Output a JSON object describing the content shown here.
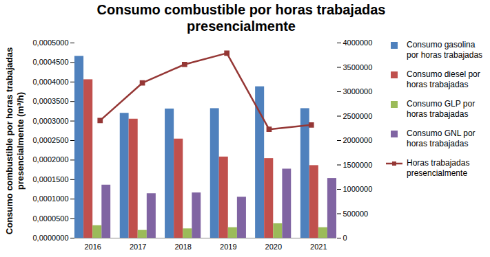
{
  "chart_data": {
    "type": "bar",
    "title": "Consumo combustible por horas trabajadas presencialmente",
    "ylabel": "Consumo combustible por horas trabajadas presencialmente (m³/h)",
    "categories": [
      "2016",
      "2017",
      "2018",
      "2019",
      "2020",
      "2021"
    ],
    "series": [
      {
        "name": "Consumo gasolina por horas trabajadas",
        "color": "#4f81bd",
        "values": [
          0.000466,
          0.00032,
          0.000331,
          0.000332,
          0.000388,
          0.000332
        ]
      },
      {
        "name": "Consumo diesel por horas trabajadas",
        "color": "#c0504d",
        "values": [
          0.000406,
          0.000305,
          0.000254,
          0.000208,
          0.000204,
          0.000186
        ]
      },
      {
        "name": "Consumo GLP por horas trabajadas",
        "color": "#9bbb59",
        "values": [
          3.2e-05,
          2e-05,
          2.4e-05,
          2.7e-05,
          3.7e-05,
          2.7e-05
        ]
      },
      {
        "name": "Consumo GNL por horas trabajadas",
        "color": "#8064a2",
        "values": [
          0.000136,
          0.000114,
          0.000116,
          0.000105,
          0.000177,
          0.000153
        ]
      },
      {
        "name": "Horas trabajadas presencialmente",
        "type": "line",
        "axis": "y2",
        "color": "#953735",
        "marker": "square",
        "values": [
          2410000,
          3180000,
          3560000,
          3790000,
          2230000,
          2320000
        ]
      }
    ],
    "ylim": [
      0,
      0.0005
    ],
    "yticks": [
      {
        "value": 0,
        "label": "0,0000000"
      },
      {
        "value": 5e-05,
        "label": "0,0000500"
      },
      {
        "value": 0.0001,
        "label": "0,0001000"
      },
      {
        "value": 0.00015,
        "label": "0,0001500"
      },
      {
        "value": 0.0002,
        "label": "0,0002000"
      },
      {
        "value": 0.00025,
        "label": "0,0002500"
      },
      {
        "value": 0.0003,
        "label": "0,0003000"
      },
      {
        "value": 0.00035,
        "label": "0,0003500"
      },
      {
        "value": 0.0004,
        "label": "0,0004000"
      },
      {
        "value": 0.00045,
        "label": "0,0004500"
      },
      {
        "value": 0.0005,
        "label": "0,0005000"
      }
    ],
    "y2lim": [
      0,
      4000000
    ],
    "y2ticks": [
      0,
      500000,
      1000000,
      1500000,
      2000000,
      2500000,
      3000000,
      3500000,
      4000000
    ],
    "grid": false,
    "legend": "right"
  }
}
